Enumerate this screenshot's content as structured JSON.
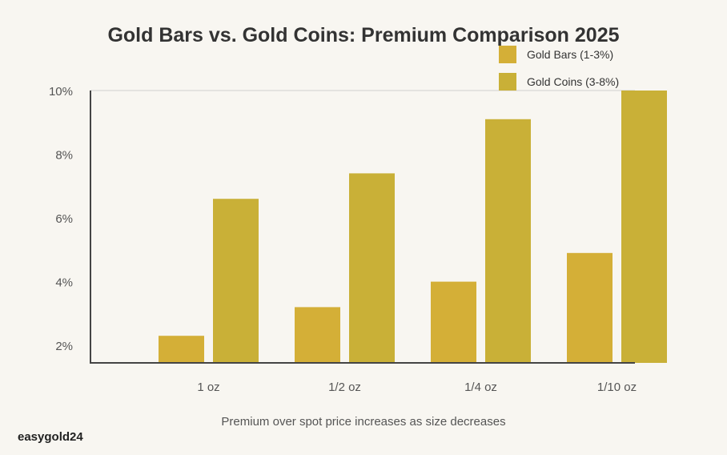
{
  "chart_data": {
    "type": "bar",
    "title": "Gold Bars vs. Gold Coins: Premium Comparison 2025",
    "subtitle": "Premium over spot price increases as size decreases",
    "xlabel": "",
    "ylabel": "",
    "categories": [
      "1 oz",
      "1/2 oz",
      "1/4 oz",
      "1/10 oz"
    ],
    "series": [
      {
        "name": "Gold Bars (1-3%)",
        "color": "#D4AF37",
        "values": [
          2.3,
          3.2,
          4.0,
          4.9
        ]
      },
      {
        "name": "Gold Coins (3-8%)",
        "color": "#C9B037",
        "values": [
          6.6,
          7.4,
          9.1,
          10.0
        ]
      }
    ],
    "yticks": [
      10,
      8,
      6,
      4,
      2
    ],
    "ytick_labels": [
      "10%",
      "8%",
      "6%",
      "4%",
      "2%"
    ],
    "ylim": [
      1.45,
      10
    ],
    "legend": "top-right",
    "grid": false
  },
  "brand": "easygold24"
}
